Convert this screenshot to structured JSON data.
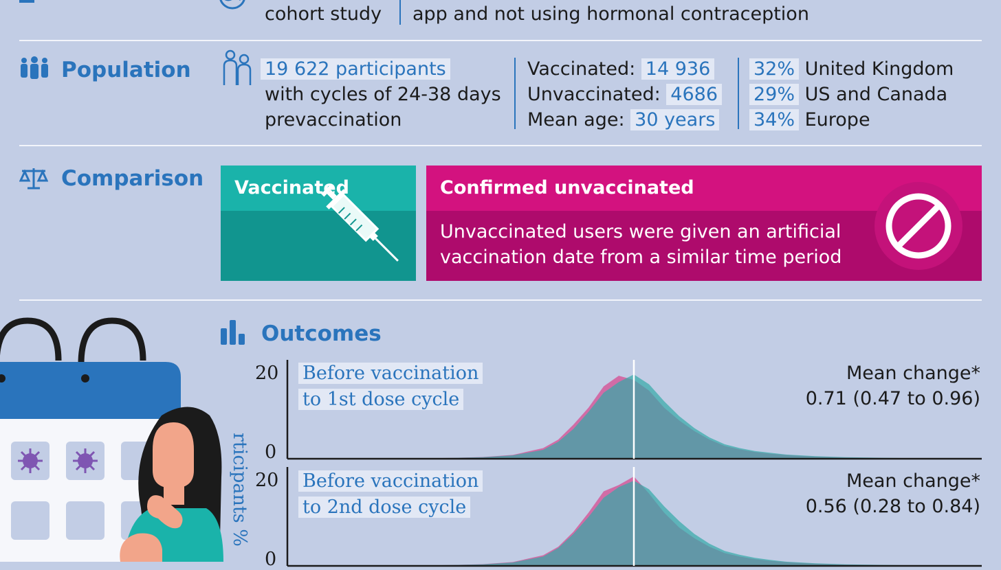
{
  "design": {
    "lines": [
      "cohort study",
      "app and not using hormonal contraception"
    ]
  },
  "population": {
    "title": "Population",
    "participants_highlight": "19 622 participants",
    "participants_line2": "with cycles of 24-38 days",
    "participants_line3": "prevaccination",
    "vaccinated_label": "Vaccinated:",
    "vaccinated_value": "14 936",
    "unvaccinated_label": "Unvaccinated:",
    "unvaccinated_value": "4686",
    "age_label": "Mean age:",
    "age_value": "30 years",
    "regions": [
      {
        "pct": "32%",
        "name": "United Kingdom"
      },
      {
        "pct": "29%",
        "name": "US and Canada"
      },
      {
        "pct": "34%",
        "name": "Europe"
      }
    ]
  },
  "comparison": {
    "title": "Comparison",
    "vaccinated_title": "Vaccinated",
    "unvaccinated_title": "Confirmed unvaccinated",
    "unvaccinated_desc_1": "Unvaccinated users were given an artificial",
    "unvaccinated_desc_2": "vaccination date from a similar time period"
  },
  "outcomes": {
    "title": "Outcomes",
    "ylabel_visible": "rticipants %"
  },
  "colors": {
    "background": "#c2cde5",
    "accent_blue": "#2a74bc",
    "teal": "#1ab3aa",
    "teal_dark": "#11958f",
    "magenta": "#d3127f",
    "magenta_dark": "#ae0b6c",
    "chart_overlap": "#6e9eaf",
    "chart_magenta": "#d45a9b",
    "chart_teal": "#33aaa8"
  },
  "chart_data": [
    {
      "type": "area",
      "title_lines": [
        "Before vaccination",
        "to 1st dose cycle"
      ],
      "ylim": [
        0,
        20
      ],
      "yticks": [
        "20",
        "0"
      ],
      "x": [
        -14,
        -12,
        -10,
        -8,
        -6,
        -5,
        -4,
        -3,
        -2,
        -1,
        0,
        1,
        2,
        3,
        4,
        5,
        6,
        7,
        8,
        9,
        10,
        12,
        14,
        17,
        20
      ],
      "series": [
        {
          "values": [
            0.1,
            0.2,
            0.4,
            0.9,
            2.5,
            4.5,
            8,
            12,
            17,
            19.5,
            18.5,
            16,
            12,
            9,
            6.5,
            4.5,
            3,
            2.2,
            1.6,
            1.2,
            0.9,
            0.5,
            0.3,
            0.15,
            0.05
          ]
        },
        {
          "values": [
            0.1,
            0.2,
            0.35,
            0.8,
            2.1,
            4,
            7,
            11,
            15.5,
            18,
            19.8,
            17.5,
            13.5,
            10,
            7.2,
            5,
            3.4,
            2.5,
            1.8,
            1.4,
            1,
            0.6,
            0.35,
            0.2,
            0.05
          ]
        }
      ],
      "mean_change_label": "Mean change*",
      "mean_change_value": "0.71 (0.47 to 0.96)"
    },
    {
      "type": "area",
      "title_lines": [
        "Before vaccination",
        "to 2nd dose cycle"
      ],
      "ylim": [
        0,
        20
      ],
      "yticks": [
        "20",
        "0"
      ],
      "x": [
        -14,
        -12,
        -10,
        -8,
        -6,
        -5,
        -4,
        -3,
        -2,
        -1,
        0,
        1,
        2,
        3,
        4,
        5,
        6,
        7,
        8,
        9,
        10,
        12,
        14,
        17,
        20
      ],
      "series": [
        {
          "values": [
            0.1,
            0.2,
            0.4,
            0.9,
            2.5,
            4.5,
            8,
            12.5,
            17.5,
            19,
            21,
            17,
            12.5,
            9,
            6.5,
            4.5,
            3,
            2.2,
            1.6,
            1.2,
            0.9,
            0.5,
            0.3,
            0.15,
            0.05
          ]
        },
        {
          "values": [
            0.1,
            0.2,
            0.35,
            0.8,
            2.2,
            4.2,
            7.5,
            11.5,
            16,
            18.5,
            20,
            18,
            14,
            10.5,
            7.5,
            5.2,
            3.5,
            2.6,
            1.9,
            1.4,
            1,
            0.6,
            0.35,
            0.2,
            0.05
          ]
        }
      ],
      "mean_change_label": "Mean change*",
      "mean_change_value": "0.56 (0.28 to 0.84)"
    }
  ]
}
